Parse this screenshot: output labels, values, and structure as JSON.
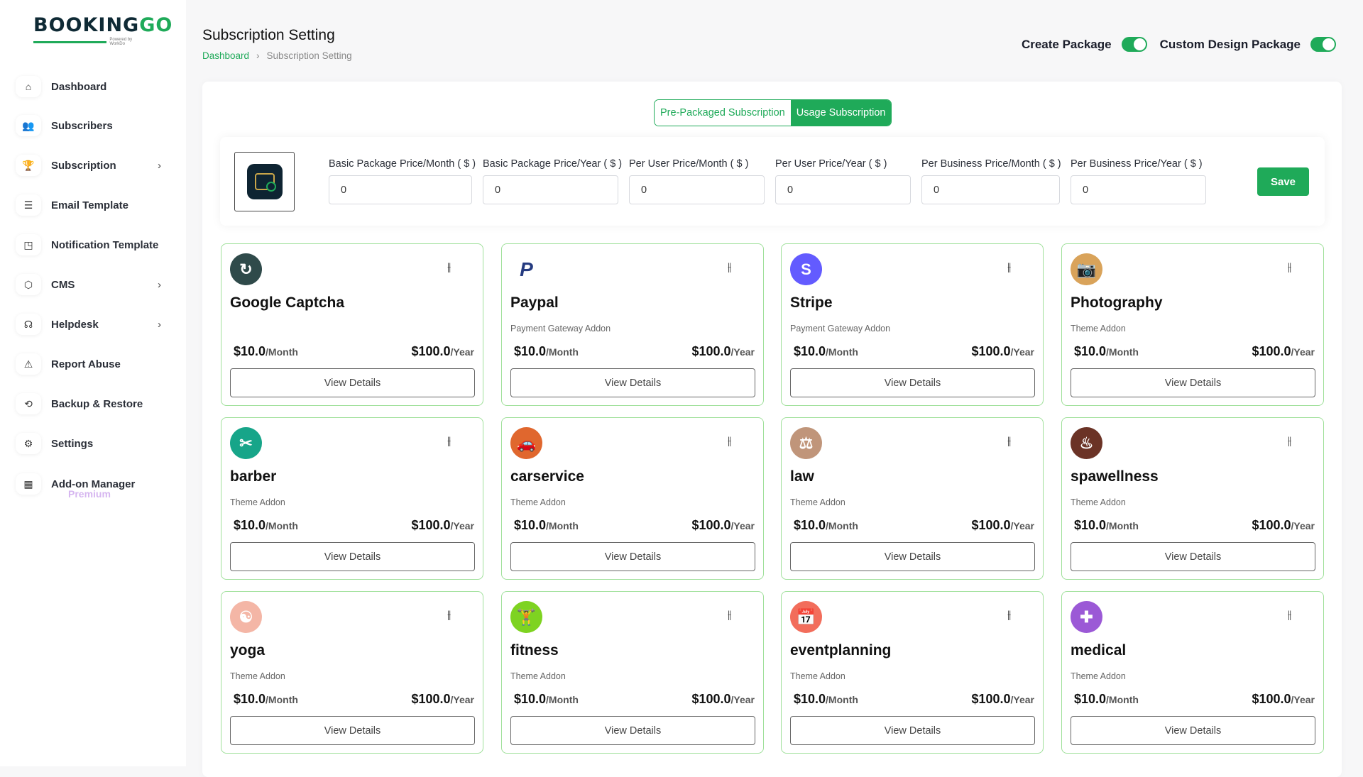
{
  "brand": {
    "logo_main": "BOOKING",
    "logo_accent": "GO",
    "powered": "Powered by WorkDo"
  },
  "sidebar": {
    "items": [
      {
        "label": "Dashboard",
        "icon": "home-icon",
        "glyph": "⌂",
        "chevron": false
      },
      {
        "label": "Subscribers",
        "icon": "users-icon",
        "glyph": "👥",
        "chevron": false
      },
      {
        "label": "Subscription",
        "icon": "trophy-icon",
        "glyph": "🏆",
        "chevron": true
      },
      {
        "label": "Email Template",
        "icon": "template-icon",
        "glyph": "☰",
        "chevron": false
      },
      {
        "label": "Notification Template",
        "icon": "notification-icon",
        "glyph": "◳",
        "chevron": false
      },
      {
        "label": "CMS",
        "icon": "cube-icon",
        "glyph": "⬡",
        "chevron": true
      },
      {
        "label": "Helpdesk",
        "icon": "headphones-icon",
        "glyph": "☊",
        "chevron": true
      },
      {
        "label": "Report Abuse",
        "icon": "warning-icon",
        "glyph": "⚠",
        "chevron": false
      },
      {
        "label": "Backup & Restore",
        "icon": "backup-icon",
        "glyph": "⟲",
        "chevron": false
      },
      {
        "label": "Settings",
        "icon": "gear-icon",
        "glyph": "⚙",
        "chevron": false
      },
      {
        "label": "Add-on Manager",
        "icon": "apps-icon",
        "glyph": "▦",
        "chevron": false
      }
    ],
    "premium": "Premium"
  },
  "header": {
    "title": "Subscription Setting",
    "breadcrumb": {
      "home": "Dashboard",
      "current": "Subscription Setting"
    },
    "toggles": [
      {
        "label": "Create Package",
        "on": true
      },
      {
        "label": "Custom Design Package",
        "on": true
      }
    ]
  },
  "tabs": [
    {
      "label": "Pre-Packaged Subscription",
      "active": false
    },
    {
      "label": "Usage Subscription",
      "active": true
    }
  ],
  "pricing": {
    "fields": [
      {
        "label": "Basic Package Price/Month ( $ )",
        "value": "0"
      },
      {
        "label": "Basic Package Price/Year ( $ )",
        "value": "0"
      },
      {
        "label": "Per User Price/Month ( $ )",
        "value": "0"
      },
      {
        "label": "Per User Price/Year ( $ )",
        "value": "0"
      },
      {
        "label": "Per Business Price/Month ( $ )",
        "value": "0"
      },
      {
        "label": "Per Business Price/Year ( $ )",
        "value": "0"
      }
    ],
    "save": "Save"
  },
  "card_common": {
    "view": "View Details",
    "month_unit": "/Month",
    "year_unit": "/Year"
  },
  "addons": [
    {
      "name": "Google Captcha",
      "type": "",
      "month": "$10.0",
      "year": "$100.0",
      "icon": "captcha-icon",
      "color": "#2f4a4a",
      "glyph": "↻"
    },
    {
      "name": "Paypal",
      "type": "Payment Gateway Addon",
      "month": "$10.0",
      "year": "$100.0",
      "icon": "paypal-icon",
      "color": "#ffffff",
      "glyph": "P"
    },
    {
      "name": "Stripe",
      "type": "Payment Gateway Addon",
      "month": "$10.0",
      "year": "$100.0",
      "icon": "stripe-icon",
      "color": "#635bff",
      "glyph": "S"
    },
    {
      "name": "Photography",
      "type": "Theme Addon",
      "month": "$10.0",
      "year": "$100.0",
      "icon": "camera-tripod-icon",
      "color": "#d9a35a",
      "glyph": "📷"
    },
    {
      "name": "barber",
      "type": "Theme Addon",
      "month": "$10.0",
      "year": "$100.0",
      "icon": "barber-icon",
      "color": "#17a589",
      "glyph": "✂"
    },
    {
      "name": "carservice",
      "type": "Theme Addon",
      "month": "$10.0",
      "year": "$100.0",
      "icon": "car-icon",
      "color": "#e0672e",
      "glyph": "🚗"
    },
    {
      "name": "law",
      "type": "Theme Addon",
      "month": "$10.0",
      "year": "$100.0",
      "icon": "scales-icon",
      "color": "#c0957a",
      "glyph": "⚖"
    },
    {
      "name": "spawellness",
      "type": "Theme Addon",
      "month": "$10.0",
      "year": "$100.0",
      "icon": "spa-icon",
      "color": "#6b3326",
      "glyph": "♨"
    },
    {
      "name": "yoga",
      "type": "Theme Addon",
      "month": "$10.0",
      "year": "$100.0",
      "icon": "yoga-icon",
      "color": "#f4b6a6",
      "glyph": "☯"
    },
    {
      "name": "fitness",
      "type": "Theme Addon",
      "month": "$10.0",
      "year": "$100.0",
      "icon": "fitness-icon",
      "color": "#7ed321",
      "glyph": "🏋"
    },
    {
      "name": "eventplanning",
      "type": "Theme Addon",
      "month": "$10.0",
      "year": "$100.0",
      "icon": "calendar-icon",
      "color": "#f26d5b",
      "glyph": "📅"
    },
    {
      "name": "medical",
      "type": "Theme Addon",
      "month": "$10.0",
      "year": "$100.0",
      "icon": "medical-icon",
      "color": "#9b59d6",
      "glyph": "✚"
    }
  ],
  "colors": {
    "accent": "#1faa59",
    "card_border": "#9fe09a"
  }
}
